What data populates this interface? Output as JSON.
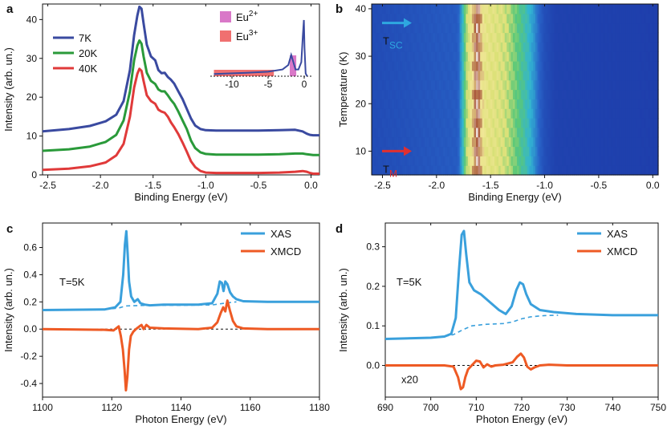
{
  "panels": {
    "a": "a",
    "b": "b",
    "c": "c",
    "d": "d"
  },
  "chart_data": [
    {
      "id": "a",
      "type": "line",
      "xlabel": "Binding Energy (eV)",
      "ylabel": "Intensity (arb. un.)",
      "xlim": [
        -2.55,
        0.08
      ],
      "ylim": [
        0,
        44
      ],
      "xticks": [
        -2.5,
        -2.0,
        -1.5,
        -1.0,
        -0.5,
        0.0
      ],
      "xtick_labels": [
        "-2.5",
        "-2.0",
        "-1.5",
        "-1.0",
        "-0.5",
        "0.0"
      ],
      "yticks": [
        0,
        10,
        20,
        30,
        40
      ],
      "ytick_labels": [
        "0",
        "10",
        "20",
        "30",
        "40"
      ],
      "legend_position": "top-left",
      "series": [
        {
          "name": "7K",
          "color": "#3a4aa0",
          "x": [
            -2.55,
            -2.3,
            -2.1,
            -1.95,
            -1.85,
            -1.78,
            -1.72,
            -1.68,
            -1.65,
            -1.63,
            -1.61,
            -1.59,
            -1.56,
            -1.52,
            -1.48,
            -1.45,
            -1.42,
            -1.39,
            -1.36,
            -1.33,
            -1.3,
            -1.26,
            -1.22,
            -1.18,
            -1.14,
            -1.1,
            -1.05,
            -1.0,
            -0.9,
            -0.7,
            -0.5,
            -0.3,
            -0.15,
            -0.08,
            -0.04,
            -0.01,
            0.02,
            0.08
          ],
          "y": [
            11.2,
            11.8,
            12.6,
            13.8,
            15.5,
            19,
            27,
            36,
            41,
            43.3,
            42.8,
            39,
            33.5,
            30.5,
            29.5,
            27,
            26.2,
            26.3,
            25.2,
            24.5,
            23.5,
            21.5,
            19.5,
            17,
            14.5,
            12.7,
            11.8,
            11.5,
            11.4,
            11.4,
            11.4,
            11.5,
            11.6,
            11.2,
            10.6,
            10.3,
            10.2,
            10.2
          ]
        },
        {
          "name": "20K",
          "color": "#2a9a3a",
          "x": [
            -2.55,
            -2.3,
            -2.1,
            -1.95,
            -1.85,
            -1.78,
            -1.72,
            -1.68,
            -1.65,
            -1.63,
            -1.61,
            -1.59,
            -1.56,
            -1.52,
            -1.48,
            -1.45,
            -1.42,
            -1.39,
            -1.36,
            -1.33,
            -1.3,
            -1.26,
            -1.22,
            -1.18,
            -1.14,
            -1.1,
            -1.05,
            -1.0,
            -0.9,
            -0.7,
            -0.5,
            -0.3,
            -0.15,
            -0.08,
            -0.04,
            -0.01,
            0.02,
            0.08
          ],
          "y": [
            6.2,
            6.6,
            7.3,
            8.5,
            10.3,
            14,
            21.5,
            29.5,
            33.3,
            34.6,
            33.8,
            30.5,
            26.3,
            24.2,
            23.4,
            22,
            21.5,
            21.5,
            20.5,
            19.3,
            18.3,
            16.3,
            14,
            11.8,
            8.8,
            6.9,
            5.8,
            5.4,
            5.2,
            5.2,
            5.2,
            5.3,
            5.5,
            5.5,
            5.3,
            5.2,
            5.1,
            5.1
          ]
        },
        {
          "name": "40K",
          "color": "#e03a3a",
          "x": [
            -2.55,
            -2.3,
            -2.1,
            -1.95,
            -1.85,
            -1.78,
            -1.72,
            -1.68,
            -1.65,
            -1.63,
            -1.61,
            -1.59,
            -1.56,
            -1.52,
            -1.48,
            -1.45,
            -1.42,
            -1.39,
            -1.36,
            -1.33,
            -1.3,
            -1.26,
            -1.22,
            -1.18,
            -1.14,
            -1.1,
            -1.05,
            -1.0,
            -0.9,
            -0.7,
            -0.5,
            -0.3,
            -0.15,
            -0.08,
            -0.04,
            -0.01,
            0.02,
            0.08
          ],
          "y": [
            1.3,
            1.6,
            2.2,
            3.2,
            5,
            8,
            15,
            22.5,
            26,
            27.3,
            26.8,
            24.2,
            20.5,
            19,
            18.3,
            16.8,
            16.3,
            16,
            15,
            13.5,
            12.3,
            10.5,
            8.3,
            6,
            3.5,
            2,
            1,
            0.6,
            0.5,
            0.5,
            0.5,
            0.6,
            0.8,
            1,
            0.8,
            0.5,
            0.3,
            0.3
          ]
        }
      ],
      "inset": {
        "xticks": [
          -10,
          -5,
          0
        ],
        "xtick_labels": [
          "-10",
          "-5",
          "0"
        ],
        "xlim": [
          -13,
          1
        ],
        "legend": [
          {
            "label": "Eu",
            "sup": "2+",
            "color": "#d978c8"
          },
          {
            "label": "Eu",
            "sup": "3+",
            "color": "#f07070"
          }
        ],
        "eu3_range": [
          -12.5,
          -4.2
        ],
        "eu2_range": [
          -2.0,
          -1.1
        ],
        "curve_x": [
          -12.5,
          -8,
          -5,
          -3,
          -2.2,
          -1.8,
          -1.5,
          -1.2,
          -0.8,
          -0.4,
          -0.2,
          -0.05,
          0.05,
          0.2,
          0.4
        ],
        "curve_y": [
          0.04,
          0.06,
          0.08,
          0.12,
          0.2,
          0.38,
          0.25,
          0.12,
          0.12,
          0.25,
          0.7,
          1.0,
          0.5,
          0.05,
          0.0
        ]
      }
    },
    {
      "id": "b",
      "type": "heatmap",
      "xlabel": "Binding Energy (eV)",
      "ylabel": "Temperature (K)",
      "xlim": [
        -2.6,
        0.05
      ],
      "ylim": [
        5,
        41
      ],
      "xticks": [
        -2.5,
        -2.0,
        -1.5,
        -1.0,
        -0.5,
        0.0
      ],
      "xtick_labels": [
        "-2.5",
        "-2.0",
        "-1.5",
        "-1.0",
        "-0.5",
        "0.0"
      ],
      "yticks": [
        10,
        20,
        30,
        40
      ],
      "ytick_labels": [
        "10",
        "20",
        "30",
        "40"
      ],
      "intensity_profile_x": [
        -2.6,
        -1.8,
        -1.75,
        -1.72,
        -1.68,
        -1.65,
        -1.63,
        -1.61,
        -1.59,
        -1.55,
        -1.5,
        -1.45,
        -1.4,
        -1.35,
        -1.3,
        -1.25,
        -1.2,
        -1.15,
        -1.1,
        -1.05,
        -1.0,
        -0.9,
        0.05
      ],
      "intensity_profile_y": [
        0.05,
        0.1,
        0.4,
        0.6,
        0.75,
        0.9,
        1.0,
        0.98,
        0.85,
        0.72,
        0.7,
        0.68,
        0.66,
        0.62,
        0.55,
        0.48,
        0.42,
        0.35,
        0.25,
        0.12,
        0.06,
        0.02,
        0.01
      ],
      "annotations": [
        {
          "label": "T",
          "sub": "SC",
          "temperature": 37,
          "color": "#2ea8e0"
        },
        {
          "label": "T",
          "sub": "M",
          "temperature": 10,
          "color": "#e03030"
        }
      ]
    },
    {
      "id": "c",
      "type": "line",
      "xlabel": "Photon Energy (eV)",
      "ylabel": "Intensity (arb. un.)",
      "xlim": [
        1100,
        1180
      ],
      "ylim": [
        -0.5,
        0.78
      ],
      "xticks": [
        1100,
        1120,
        1140,
        1160,
        1180
      ],
      "xtick_labels": [
        "1100",
        "1120",
        "1140",
        "1160",
        "1180"
      ],
      "yticks": [
        -0.4,
        -0.2,
        0.0,
        0.2,
        0.4,
        0.6
      ],
      "ytick_labels": [
        "-0.4",
        "-0.2",
        "0.0",
        "0.2",
        "0.4",
        "0.6"
      ],
      "annotation": "T=5K",
      "legend_position": "top-right",
      "series": [
        {
          "name": "XAS",
          "color": "#3aa0dc",
          "x": [
            1100,
            1118,
            1121,
            1122.5,
            1123.3,
            1123.8,
            1124.2,
            1124.6,
            1125,
            1125.6,
            1126.5,
            1127.5,
            1128.3,
            1129.5,
            1131,
            1135,
            1140,
            1145,
            1149,
            1150.5,
            1151.2,
            1151.8,
            1152.3,
            1152.8,
            1153.4,
            1154.2,
            1155,
            1156,
            1158,
            1165,
            1180
          ],
          "y": [
            0.14,
            0.145,
            0.16,
            0.2,
            0.4,
            0.62,
            0.72,
            0.55,
            0.35,
            0.24,
            0.2,
            0.22,
            0.19,
            0.18,
            0.175,
            0.18,
            0.18,
            0.18,
            0.19,
            0.26,
            0.35,
            0.34,
            0.28,
            0.35,
            0.33,
            0.27,
            0.24,
            0.22,
            0.205,
            0.2,
            0.2
          ]
        },
        {
          "name": "XAS background",
          "color": "#3aa0dc",
          "dashed": true,
          "x": [
            1118,
            1122,
            1124,
            1126,
            1130,
            1140,
            1149,
            1151,
            1152.5,
            1154,
            1156
          ],
          "y": [
            0.145,
            0.155,
            0.17,
            0.172,
            0.175,
            0.175,
            0.178,
            0.185,
            0.19,
            0.195,
            0.2
          ]
        },
        {
          "name": "XMCD",
          "color": "#ee5a24",
          "x": [
            1100,
            1118,
            1120.5,
            1121.5,
            1122,
            1122.6,
            1123.2,
            1123.7,
            1124.1,
            1124.5,
            1125,
            1125.5,
            1126.2,
            1127,
            1128,
            1128.6,
            1129.2,
            1130,
            1131,
            1135,
            1145,
            1149,
            1150.5,
            1151.5,
            1152.2,
            1152.8,
            1153.4,
            1154.1,
            1155,
            1156,
            1158,
            1165,
            1180
          ],
          "y": [
            0,
            -0.005,
            -0.01,
            0.01,
            0.02,
            -0.05,
            -0.15,
            -0.3,
            -0.45,
            -0.35,
            -0.15,
            -0.05,
            -0.02,
            0.0,
            0.02,
            0.03,
            0.0,
            0.03,
            0.01,
            0.005,
            0.0,
            0.01,
            0.05,
            0.12,
            0.16,
            0.13,
            0.21,
            0.14,
            0.06,
            0.02,
            0.005,
            0.0,
            0.0
          ]
        }
      ],
      "zero_line": true
    },
    {
      "id": "d",
      "type": "line",
      "xlabel": "Photon Energy (eV)",
      "ylabel": "Intensity (arb. un.)",
      "xlim": [
        690,
        750
      ],
      "ylim": [
        -0.08,
        0.36
      ],
      "xticks": [
        690,
        700,
        710,
        720,
        730,
        740,
        750
      ],
      "xtick_labels": [
        "690",
        "700",
        "710",
        "720",
        "730",
        "740",
        "750"
      ],
      "yticks": [
        0.0,
        0.1,
        0.2,
        0.3
      ],
      "ytick_labels": [
        "0.0",
        "0.1",
        "0.2",
        "0.3"
      ],
      "annotation": "T=5K",
      "scale_label": "x20",
      "legend_position": "top-right",
      "series": [
        {
          "name": "XAS",
          "color": "#3aa0dc",
          "x": [
            690,
            700,
            703,
            704.5,
            705.5,
            706.2,
            706.8,
            707.3,
            707.8,
            708.5,
            709.5,
            711,
            713,
            715,
            716.5,
            717.8,
            718.8,
            719.6,
            720.3,
            721,
            722,
            724,
            727,
            732,
            740,
            750
          ],
          "y": [
            0.067,
            0.07,
            0.073,
            0.08,
            0.12,
            0.24,
            0.33,
            0.34,
            0.28,
            0.21,
            0.19,
            0.18,
            0.16,
            0.14,
            0.13,
            0.15,
            0.19,
            0.21,
            0.205,
            0.18,
            0.155,
            0.14,
            0.135,
            0.13,
            0.127,
            0.127
          ]
        },
        {
          "name": "XAS background",
          "color": "#3aa0dc",
          "dashed": true,
          "x": [
            703,
            705,
            707,
            709,
            712,
            716,
            718,
            720,
            722,
            725,
            728
          ],
          "y": [
            0.073,
            0.078,
            0.09,
            0.1,
            0.104,
            0.106,
            0.11,
            0.118,
            0.123,
            0.126,
            0.127
          ]
        },
        {
          "name": "XMCD",
          "color": "#ee5a24",
          "x": [
            690,
            703,
            705,
            706,
            706.6,
            707.1,
            707.6,
            708.2,
            709,
            710,
            710.8,
            711.6,
            712.4,
            713.3,
            714.2,
            716,
            718,
            719,
            719.8,
            720.5,
            721.2,
            722,
            722.8,
            724,
            726,
            730,
            740,
            750
          ],
          "y": [
            0,
            0,
            -0.003,
            -0.03,
            -0.06,
            -0.055,
            -0.03,
            -0.01,
            0.0,
            0.012,
            0.01,
            -0.005,
            0.003,
            -0.003,
            0.0,
            0.002,
            0.008,
            0.022,
            0.03,
            0.02,
            -0.003,
            -0.01,
            -0.005,
            0.0,
            0.002,
            0.0,
            0.0,
            0.0
          ]
        }
      ],
      "zero_line": true
    }
  ]
}
